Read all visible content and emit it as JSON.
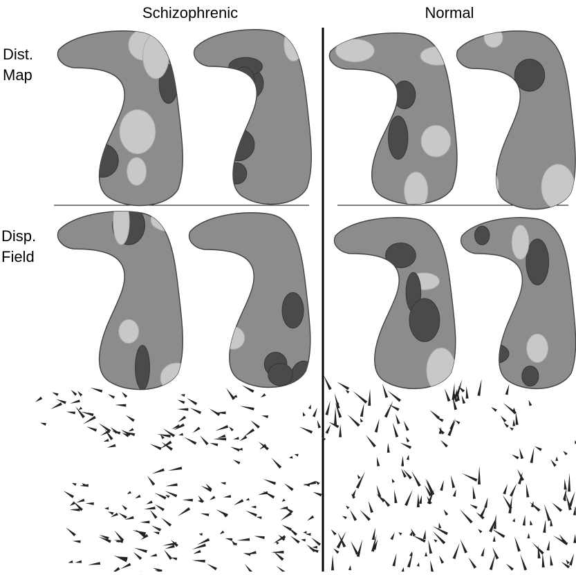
{
  "column_headers": [
    "Schizophrenic",
    "Normal"
  ],
  "row_labels": [
    [
      "Dist.",
      "Map"
    ],
    [
      "Disp.",
      "Field"
    ]
  ]
}
